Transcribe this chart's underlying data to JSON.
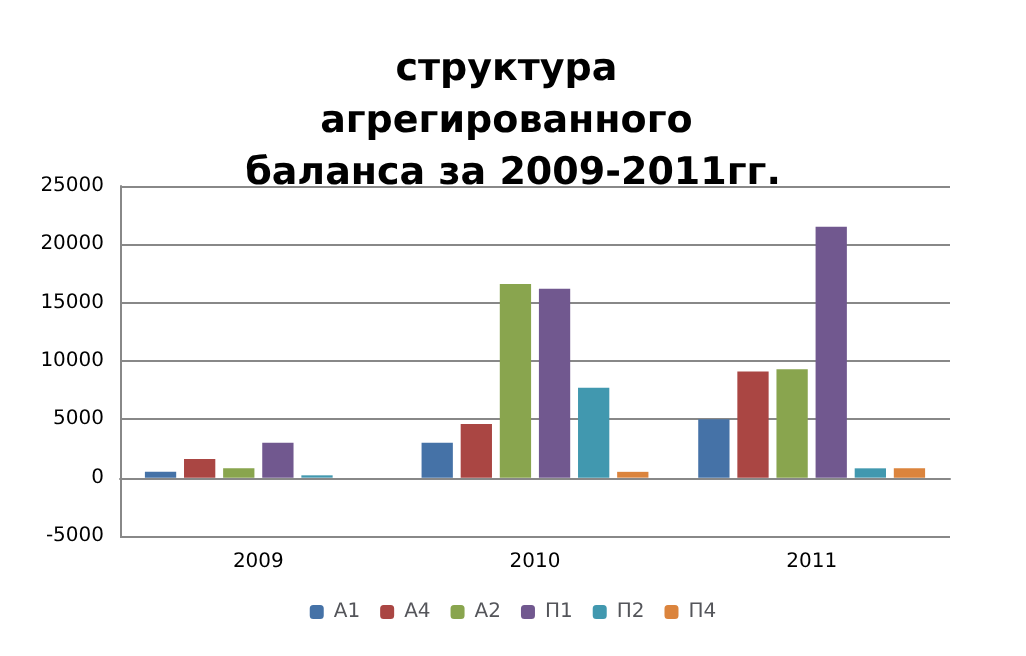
{
  "chart_data": {
    "type": "bar",
    "title": "структура агрегированного баланса за 2009-2011гг.",
    "categories": [
      "2009",
      "2010",
      "2011"
    ],
    "series": [
      {
        "name": "А1",
        "color": "#4572a7",
        "values": [
          500,
          3000,
          5000
        ]
      },
      {
        "name": "А4",
        "color": "#aa4643",
        "values": [
          1600,
          4600,
          9100
        ]
      },
      {
        "name": "А2",
        "color": "#89a54e",
        "values": [
          800,
          16600,
          9300
        ]
      },
      {
        "name": "П1",
        "color": "#71588f",
        "values": [
          3000,
          16200,
          21500
        ]
      },
      {
        "name": "П2",
        "color": "#4198af",
        "values": [
          200,
          7700,
          800
        ]
      },
      {
        "name": "П4",
        "color": "#db843d",
        "values": [
          0,
          500,
          800
        ]
      }
    ],
    "ylim": [
      -5000,
      25000
    ],
    "yticks": [
      -5000,
      0,
      5000,
      10000,
      15000,
      20000,
      25000
    ],
    "grid": "y",
    "legend": "bottom"
  }
}
